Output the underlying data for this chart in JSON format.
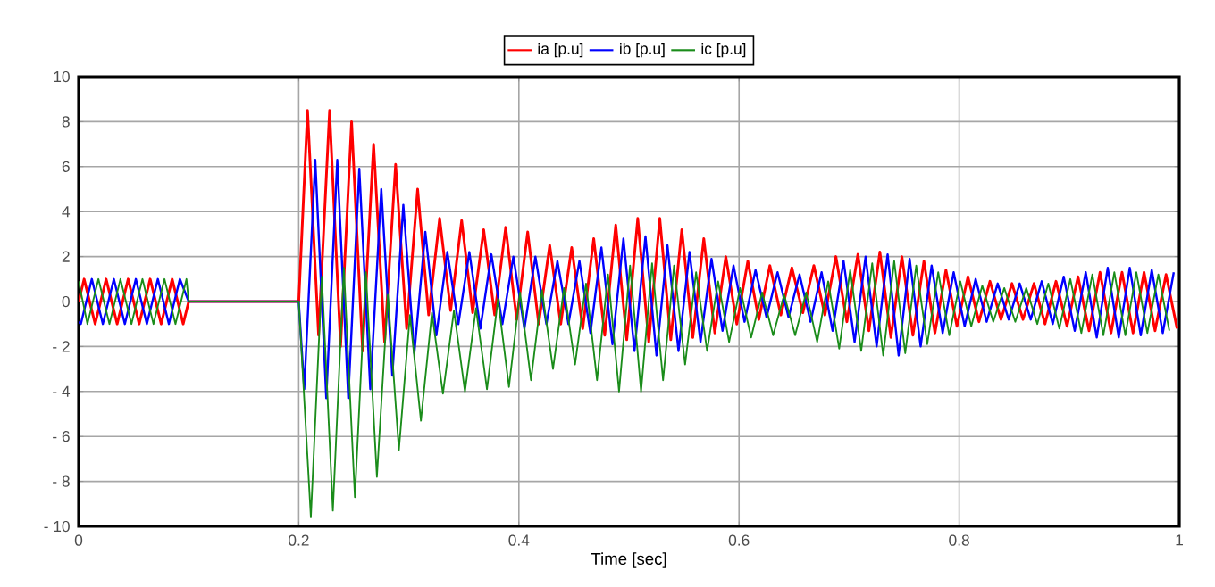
{
  "chart_data": {
    "type": "line",
    "xlabel": "Time [sec]",
    "xlim": [
      0,
      1
    ],
    "xticks": [
      0,
      0.2,
      0.4,
      0.6,
      0.8,
      1
    ],
    "ylim": [
      -10,
      10
    ],
    "yticks": [
      {
        "value": -10,
        "label": "- 10"
      },
      {
        "value": -8,
        "label": "- 8"
      },
      {
        "value": -6,
        "label": "- 6"
      },
      {
        "value": -4,
        "label": "- 4"
      },
      {
        "value": -2,
        "label": "- 2"
      },
      0,
      2,
      4,
      6,
      8,
      10
    ],
    "grid": true,
    "legend": "top",
    "series": [
      {
        "name": "ia [p.u]",
        "color": "#ff0000",
        "x": [
          0,
          0.005,
          0.015,
          0.025,
          0.035,
          0.045,
          0.055,
          0.065,
          0.075,
          0.085,
          0.095,
          0.1,
          0.2,
          0.208,
          0.218,
          0.228,
          0.238,
          0.248,
          0.258,
          0.268,
          0.278,
          0.288,
          0.298,
          0.308,
          0.318,
          0.328,
          0.338,
          0.348,
          0.358,
          0.368,
          0.378,
          0.388,
          0.398,
          0.408,
          0.418,
          0.428,
          0.438,
          0.448,
          0.458,
          0.468,
          0.478,
          0.488,
          0.498,
          0.508,
          0.518,
          0.528,
          0.538,
          0.548,
          0.558,
          0.568,
          0.578,
          0.588,
          0.598,
          0.608,
          0.618,
          0.628,
          0.638,
          0.648,
          0.658,
          0.668,
          0.678,
          0.688,
          0.698,
          0.708,
          0.718,
          0.728,
          0.738,
          0.748,
          0.758,
          0.768,
          0.778,
          0.788,
          0.798,
          0.808,
          0.818,
          0.828,
          0.838,
          0.848,
          0.858,
          0.868,
          0.878,
          0.888,
          0.898,
          0.908,
          0.918,
          0.928,
          0.938,
          0.948,
          0.958,
          0.968,
          0.978,
          0.988,
          0.998
        ],
        "values": [
          0,
          1,
          -1,
          1,
          -1,
          1,
          -1,
          1,
          -1,
          1,
          -1,
          0,
          0,
          8.5,
          -1.5,
          8.5,
          -2.0,
          8.0,
          -2.2,
          7.0,
          -1.8,
          6.1,
          -1.2,
          5.0,
          -0.6,
          3.7,
          -0.4,
          3.6,
          -0.5,
          3.2,
          -0.6,
          3.3,
          -0.8,
          3.1,
          -1.0,
          2.5,
          -1.0,
          2.4,
          -1.2,
          2.8,
          -1.5,
          3.4,
          -1.7,
          3.7,
          -1.8,
          3.7,
          -1.7,
          3.2,
          -1.6,
          2.8,
          -1.4,
          2.0,
          -1.0,
          1.8,
          -0.8,
          1.6,
          -0.6,
          1.5,
          -0.5,
          1.6,
          -0.6,
          2.0,
          -0.9,
          2.1,
          -1.3,
          2.2,
          -1.6,
          2.0,
          -1.5,
          1.8,
          -1.4,
          1.4,
          -1.1,
          1.1,
          -0.9,
          0.9,
          -0.8,
          0.8,
          -0.8,
          0.8,
          -1.0,
          0.9,
          -1.1,
          1.1,
          -1.3,
          1.3,
          -1.4,
          1.3,
          -1.4,
          1.3,
          -1.3,
          1.2,
          -1.2
        ]
      },
      {
        "name": "ib [p.u]",
        "color": "#0000ff",
        "x": [
          0,
          0.002,
          0.012,
          0.022,
          0.032,
          0.042,
          0.052,
          0.062,
          0.072,
          0.082,
          0.092,
          0.1,
          0.2,
          0.205,
          0.215,
          0.225,
          0.235,
          0.245,
          0.255,
          0.265,
          0.275,
          0.285,
          0.295,
          0.305,
          0.315,
          0.325,
          0.335,
          0.345,
          0.355,
          0.365,
          0.375,
          0.385,
          0.395,
          0.405,
          0.415,
          0.425,
          0.435,
          0.445,
          0.455,
          0.465,
          0.475,
          0.485,
          0.495,
          0.505,
          0.515,
          0.525,
          0.535,
          0.545,
          0.555,
          0.565,
          0.575,
          0.585,
          0.595,
          0.605,
          0.615,
          0.625,
          0.635,
          0.645,
          0.655,
          0.665,
          0.675,
          0.685,
          0.695,
          0.705,
          0.715,
          0.725,
          0.735,
          0.745,
          0.755,
          0.765,
          0.775,
          0.785,
          0.795,
          0.805,
          0.815,
          0.825,
          0.835,
          0.845,
          0.855,
          0.865,
          0.875,
          0.885,
          0.895,
          0.905,
          0.915,
          0.925,
          0.935,
          0.945,
          0.955,
          0.965,
          0.975,
          0.985,
          0.995
        ],
        "values": [
          -0.9,
          -1,
          1,
          -1,
          1,
          -1,
          1,
          -1,
          1,
          -1,
          1,
          0,
          0,
          -3.9,
          6.3,
          -4.3,
          6.3,
          -4.3,
          5.9,
          -3.9,
          5.0,
          -3.3,
          4.3,
          -2.3,
          3.1,
          -1.5,
          2.2,
          -1.0,
          2.2,
          -1.2,
          2.1,
          -1.0,
          2.0,
          -1.2,
          2.0,
          -1.0,
          1.8,
          -1.0,
          1.8,
          -1.4,
          2.4,
          -1.9,
          2.8,
          -2.2,
          2.9,
          -2.4,
          2.5,
          -2.2,
          2.2,
          -1.8,
          1.9,
          -1.3,
          1.6,
          -0.9,
          1.4,
          -0.7,
          1.3,
          -0.7,
          1.2,
          -0.9,
          1.3,
          -1.3,
          1.8,
          -1.8,
          2.0,
          -2.0,
          2.1,
          -2.4,
          1.9,
          -2.0,
          1.6,
          -1.4,
          1.3,
          -1.1,
          1.0,
          -0.9,
          0.8,
          -0.8,
          0.8,
          -0.8,
          0.9,
          -1.0,
          1.1,
          -1.3,
          1.3,
          -1.6,
          1.5,
          -1.6,
          1.5,
          -1.5,
          1.4,
          -1.4,
          1.3
        ]
      },
      {
        "name": "ic [p.u]",
        "color": "#1a8c1a",
        "x": [
          0,
          0.008,
          0.018,
          0.028,
          0.038,
          0.048,
          0.058,
          0.068,
          0.078,
          0.088,
          0.098,
          0.1,
          0.2,
          0.211,
          0.221,
          0.231,
          0.241,
          0.251,
          0.261,
          0.271,
          0.281,
          0.291,
          0.301,
          0.311,
          0.321,
          0.331,
          0.341,
          0.351,
          0.361,
          0.371,
          0.381,
          0.391,
          0.401,
          0.411,
          0.421,
          0.431,
          0.441,
          0.451,
          0.461,
          0.471,
          0.481,
          0.491,
          0.501,
          0.511,
          0.521,
          0.531,
          0.541,
          0.551,
          0.561,
          0.571,
          0.581,
          0.591,
          0.601,
          0.611,
          0.621,
          0.631,
          0.641,
          0.651,
          0.661,
          0.671,
          0.681,
          0.691,
          0.701,
          0.711,
          0.721,
          0.731,
          0.741,
          0.751,
          0.761,
          0.771,
          0.781,
          0.791,
          0.801,
          0.811,
          0.821,
          0.831,
          0.841,
          0.851,
          0.861,
          0.871,
          0.881,
          0.891,
          0.901,
          0.911,
          0.921,
          0.931,
          0.941,
          0.951,
          0.961,
          0.971,
          0.981,
          0.991
        ],
        "values": [
          0.9,
          -1,
          1,
          -1,
          1,
          -1,
          1,
          -1,
          1,
          -1,
          1,
          0,
          0,
          -9.6,
          1.1,
          -9.3,
          1.5,
          -8.7,
          1.3,
          -7.8,
          0.3,
          -6.6,
          -0.6,
          -5.3,
          -0.5,
          -4.1,
          -0.4,
          -4.0,
          -0.3,
          -3.9,
          0.1,
          -3.8,
          0.4,
          -3.5,
          0.5,
          -3.0,
          0.6,
          -2.8,
          0.8,
          -3.5,
          1.2,
          -4.0,
          1.6,
          -4.0,
          1.7,
          -3.5,
          1.6,
          -2.8,
          1.3,
          -2.2,
          0.9,
          -1.8,
          0.6,
          -1.6,
          0.4,
          -1.5,
          0.3,
          -1.5,
          0.4,
          -1.8,
          0.9,
          -2.1,
          1.4,
          -2.2,
          1.7,
          -2.4,
          1.8,
          -2.3,
          1.6,
          -1.9,
          1.3,
          -1.5,
          0.9,
          -1.1,
          0.7,
          -0.9,
          0.6,
          -0.9,
          0.6,
          -1.0,
          0.8,
          -1.2,
          1.0,
          -1.4,
          1.2,
          -1.5,
          1.3,
          -1.5,
          1.3,
          -1.4,
          1.2,
          -1.3
        ]
      }
    ]
  }
}
